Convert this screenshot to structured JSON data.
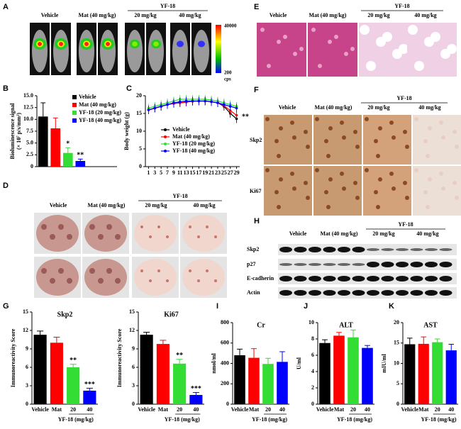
{
  "figure": {
    "panel_labels": [
      "A",
      "B",
      "C",
      "D",
      "E",
      "F",
      "G",
      "H",
      "I",
      "J",
      "K"
    ],
    "A": {
      "groups": [
        "Vehicle",
        "Mat (40 mg/kg)"
      ],
      "drug": "YF-18",
      "doses": [
        "20 mg/kg",
        "40 mg/kg"
      ],
      "colorbar_max": 40000,
      "colorbar_min": 200,
      "colorbar_unit": "cps"
    },
    "D": {
      "groups": [
        "Vehicle",
        "Mat (40 mg/kg)"
      ],
      "drug": "YF-18",
      "doses": [
        "20 mg/kg",
        "40 mg/kg"
      ]
    },
    "E": {
      "groups": [
        "Vehicle",
        "Mat (40 mg/kg)"
      ],
      "drug": "YF-18",
      "doses": [
        "20 mg/kg",
        "40 mg/kg"
      ]
    },
    "F": {
      "groups": [
        "Vehicle",
        "Mat (40 mg/kg)"
      ],
      "drug": "YF-18",
      "doses": [
        "20 mg/kg",
        "40 mg/kg"
      ],
      "rows": [
        "Skp2",
        "Ki67"
      ]
    },
    "H": {
      "groups": [
        "Vehicle",
        "Mat (40 mg/kg)"
      ],
      "drug": "YF-18",
      "doses": [
        "20 mg/kg",
        "40 mg/kg"
      ],
      "rows": [
        "Skp2",
        "p27",
        "E-cadherin",
        "Actin"
      ]
    }
  },
  "chart_data": [
    {
      "type": "bar",
      "ylabel": [
        "Bioluminescence signal",
        "(× 10⁷ p/s/mm²)"
      ],
      "series": [
        {
          "name": "Vehicle",
          "color": "#000000",
          "values": [
            10.6
          ],
          "errors": [
            2.9
          ]
        },
        {
          "name": "Mat (40 mg/kg)",
          "color": "#ff0000",
          "values": [
            8.1
          ],
          "errors": [
            2.2
          ]
        },
        {
          "name": "YF-18 (20 mg/kg)",
          "color": "#33dd33",
          "values": [
            2.9
          ],
          "errors": [
            1.1
          ]
        },
        {
          "name": "YF-18 (40 mg/kg)",
          "color": "#0000ff",
          "values": [
            1.2
          ],
          "errors": [
            0.4
          ]
        }
      ],
      "significance": [
        null,
        null,
        "*",
        "**"
      ],
      "ylim": [
        0,
        15
      ],
      "yticks": [
        0,
        2.5,
        {
          "value": 5,
          "label": "5.0"
        },
        7.5,
        {
          "value": 10,
          "label": "10.0"
        },
        12.5,
        {
          "value": 15,
          "label": "15.0"
        }
      ]
    },
    {
      "type": "line",
      "ylabel": [
        "Body weight (g)"
      ],
      "annotation": "**",
      "x": [
        1,
        3,
        5,
        7,
        9,
        11,
        13,
        15,
        17,
        19,
        21,
        23,
        25,
        27,
        29
      ],
      "series": [
        {
          "name": "Vehicle",
          "color": "#000000",
          "values": [
            16,
            16.5,
            17,
            17.5,
            17.8,
            18,
            18.2,
            18.5,
            18.5,
            18.5,
            18.3,
            18,
            17,
            15,
            13.5
          ],
          "errors": [
            1.2,
            1.2,
            1.2,
            1.2,
            1.2,
            1.2,
            1.2,
            1.2,
            1.2,
            1.2,
            1.2,
            1.2,
            1.2,
            1.2,
            1.2
          ]
        },
        {
          "name": "Mat (40 mg/kg)",
          "color": "#ff0000",
          "values": [
            16,
            16.5,
            17,
            17.5,
            17.8,
            18,
            18.2,
            18.4,
            18.5,
            18.5,
            18.3,
            18,
            17.2,
            15.8,
            14.5
          ],
          "errors": [
            1.2,
            1.2,
            1.2,
            1.2,
            1.2,
            1.2,
            1.2,
            1.2,
            1.2,
            1.2,
            1.2,
            1.2,
            1.2,
            1.2,
            1.2
          ]
        },
        {
          "name": "YF-18 (20 mg/kg)",
          "color": "#33dd33",
          "values": [
            16.5,
            17,
            17.5,
            18,
            18.5,
            19,
            19,
            19,
            19,
            19,
            18.8,
            18.5,
            18,
            17.5,
            17
          ],
          "errors": [
            1.2,
            1.2,
            1.2,
            1.2,
            1.2,
            1.2,
            1.2,
            1.2,
            1.2,
            1.2,
            1.2,
            1.2,
            1.2,
            1.2,
            1.2
          ]
        },
        {
          "name": "YF-18 (40 mg/kg)",
          "color": "#0000ff",
          "values": [
            16,
            16.5,
            17,
            17.5,
            18,
            18.3,
            18.5,
            18.5,
            18.5,
            18.5,
            18.3,
            18,
            17.5,
            17,
            16.5
          ],
          "errors": [
            1.2,
            1.2,
            1.2,
            1.2,
            1.2,
            1.2,
            1.2,
            1.2,
            1.2,
            1.2,
            1.2,
            1.2,
            1.2,
            1.2,
            1.2
          ]
        }
      ],
      "xlim": [
        0,
        30
      ],
      "xticks": [
        1,
        3,
        5,
        7,
        9,
        11,
        13,
        15,
        17,
        19,
        21,
        23,
        25,
        27,
        29
      ],
      "ylim": [
        0,
        20
      ],
      "yticks": [
        0,
        5,
        10,
        15,
        20
      ]
    },
    {
      "type": "bar",
      "title": "Skp2",
      "ylabel": [
        "Immunoreactivity Score"
      ],
      "xlabel": "YF-18 (mg/kg)",
      "categories": [
        "Vehicle",
        "Mat",
        "20",
        "40"
      ],
      "colors": [
        "#000000",
        "#ff0000",
        "#33dd33",
        "#0000ff"
      ],
      "values": [
        11.3,
        10.0,
        6.0,
        2.2
      ],
      "errors": [
        0.6,
        0.9,
        0.5,
        0.4
      ],
      "significance": [
        null,
        null,
        "**",
        "***"
      ],
      "ylim": [
        0,
        15
      ],
      "yticks": [
        0,
        3,
        6,
        9,
        12,
        15
      ]
    },
    {
      "type": "bar",
      "title": "Ki67",
      "ylabel": [
        "Immunoreactivity Score"
      ],
      "xlabel": "YF-18 (mg/kg)",
      "categories": [
        "Vehicle",
        "Mat",
        "20",
        "40"
      ],
      "colors": [
        "#000000",
        "#ff0000",
        "#33dd33",
        "#0000ff"
      ],
      "values": [
        11.3,
        9.8,
        6.6,
        1.5
      ],
      "errors": [
        0.4,
        0.6,
        0.7,
        0.4
      ],
      "significance": [
        null,
        null,
        "**",
        "***"
      ],
      "ylim": [
        0,
        15
      ],
      "yticks": [
        0,
        3,
        6,
        9,
        12,
        15
      ]
    },
    {
      "type": "bar",
      "title": "Cr",
      "ylabel": [
        "nmol/ml"
      ],
      "xlabel": "YF-18 (mg/kg)",
      "categories": [
        "Vehicle",
        "Mat",
        "20",
        "40"
      ],
      "colors": [
        "#000000",
        "#ff0000",
        "#33dd33",
        "#0000ff"
      ],
      "values": [
        480,
        455,
        395,
        415
      ],
      "errors": [
        60,
        90,
        55,
        100
      ],
      "ylim": [
        0,
        800
      ],
      "yticks": [
        0,
        200,
        400,
        600,
        800
      ]
    },
    {
      "type": "bar",
      "title": "ALT",
      "ylabel": [
        "U/ml"
      ],
      "xlabel": "YF-18 (mg/kg)",
      "categories": [
        "Vehicle",
        "Mat",
        "20",
        "40"
      ],
      "colors": [
        "#000000",
        "#ff0000",
        "#33dd33",
        "#0000ff"
      ],
      "values": [
        7.5,
        8.4,
        8.2,
        6.9
      ],
      "errors": [
        0.4,
        0.4,
        0.9,
        0.3
      ],
      "ylim": [
        0,
        10
      ],
      "yticks": [
        0,
        2,
        4,
        6,
        8,
        10
      ]
    },
    {
      "type": "bar",
      "title": "AST",
      "ylabel": [
        "mIU/ml"
      ],
      "xlabel": "YF-18 (mg/kg)",
      "categories": [
        "Vehicle",
        "Mat",
        "20",
        "40"
      ],
      "colors": [
        "#000000",
        "#ff0000",
        "#33dd33",
        "#0000ff"
      ],
      "values": [
        14.7,
        14.8,
        15.2,
        13.2
      ],
      "errors": [
        1.5,
        1.7,
        0.8,
        1.5
      ],
      "ylim": [
        0,
        20
      ],
      "yticks": [
        0,
        5,
        10,
        15,
        20
      ]
    }
  ]
}
